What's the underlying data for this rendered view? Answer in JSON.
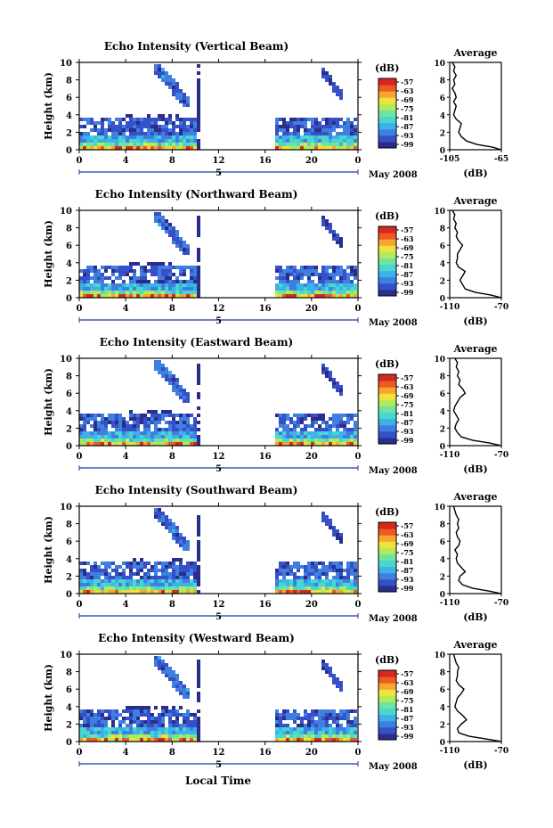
{
  "figure": {
    "bottom_xlabel": "Local Time",
    "date_label": "May 2008",
    "colorbar_unit": "(dB)",
    "colorbar_ticks": [
      "-57",
      "-63",
      "-69",
      "-75",
      "-81",
      "-87",
      "-93",
      "-99"
    ],
    "profile_title": "Average",
    "profile_xlabel": "(dB)"
  },
  "chart_data": [
    {
      "type": "heatmap",
      "title": "Echo Intensity (Vertical Beam)",
      "ylabel": "Height (km)",
      "xlim": [
        0,
        24
      ],
      "ylim": [
        0,
        10
      ],
      "xticks": [
        "0",
        "4",
        "8",
        "12",
        "16",
        "20",
        "0"
      ],
      "yticks": [
        "0",
        "2",
        "4",
        "6",
        "8",
        "10"
      ],
      "date_tick": "5",
      "data_gap_hours": [
        10.6,
        16.8
      ],
      "profile": {
        "xlim": [
          -105,
          -65
        ],
        "xticks": [
          "-105",
          "-65"
        ],
        "heights": [
          0.0,
          0.3,
          0.6,
          1.0,
          1.5,
          2.0,
          2.5,
          3.0,
          3.5,
          4.0,
          4.5,
          5.0,
          5.5,
          6.0,
          6.5,
          7.0,
          7.5,
          8.0,
          8.5,
          9.0,
          9.5,
          10.0
        ],
        "values": [
          -65,
          -72,
          -84,
          -92,
          -96,
          -98,
          -97,
          -96,
          -100,
          -102,
          -101,
          -100,
          -102,
          -100,
          -101,
          -103,
          -101,
          -102,
          -100,
          -102,
          -101,
          -103
        ]
      }
    },
    {
      "type": "heatmap",
      "title": "Echo Intensity (Northward Beam)",
      "ylabel": "Height (km)",
      "xlim": [
        0,
        24
      ],
      "ylim": [
        0,
        10
      ],
      "xticks": [
        "0",
        "4",
        "8",
        "12",
        "16",
        "20",
        "0"
      ],
      "yticks": [
        "0",
        "2",
        "4",
        "6",
        "8",
        "10"
      ],
      "date_tick": "5",
      "data_gap_hours": [
        10.6,
        16.8
      ],
      "profile": {
        "xlim": [
          -110,
          -70
        ],
        "xticks": [
          "-110",
          "-70"
        ],
        "heights": [
          0.0,
          0.3,
          0.6,
          1.0,
          1.5,
          2.0,
          2.5,
          3.0,
          3.5,
          4.0,
          4.5,
          5.0,
          5.5,
          6.0,
          6.5,
          7.0,
          7.5,
          8.0,
          8.5,
          9.0,
          9.5,
          10.0
        ],
        "values": [
          -70,
          -78,
          -90,
          -98,
          -100,
          -102,
          -100,
          -98,
          -103,
          -105,
          -104,
          -104,
          -102,
          -100,
          -103,
          -105,
          -104,
          -106,
          -105,
          -107,
          -106,
          -108
        ]
      }
    },
    {
      "type": "heatmap",
      "title": "Echo Intensity (Eastward Beam)",
      "ylabel": "Height (km)",
      "xlim": [
        0,
        24
      ],
      "ylim": [
        0,
        10
      ],
      "xticks": [
        "0",
        "4",
        "8",
        "12",
        "16",
        "20",
        "0"
      ],
      "yticks": [
        "0",
        "2",
        "4",
        "6",
        "8",
        "10"
      ],
      "date_tick": "5",
      "data_gap_hours": [
        10.6,
        16.8
      ],
      "profile": {
        "xlim": [
          -110,
          -70
        ],
        "xticks": [
          "-110",
          "-70"
        ],
        "heights": [
          0.0,
          0.3,
          0.6,
          1.0,
          1.5,
          2.0,
          2.5,
          3.0,
          3.5,
          4.0,
          4.5,
          5.0,
          5.5,
          6.0,
          6.5,
          7.0,
          7.5,
          8.0,
          8.5,
          9.0,
          9.5,
          10.0
        ],
        "values": [
          -70,
          -79,
          -92,
          -101,
          -104,
          -106,
          -105,
          -103,
          -105,
          -107,
          -106,
          -104,
          -102,
          -98,
          -100,
          -103,
          -102,
          -104,
          -103,
          -105,
          -104,
          -106
        ]
      }
    },
    {
      "type": "heatmap",
      "title": "Echo Intensity (Southward Beam)",
      "ylabel": "Height (km)",
      "xlim": [
        0,
        24
      ],
      "ylim": [
        0,
        10
      ],
      "xticks": [
        "0",
        "4",
        "8",
        "12",
        "16",
        "20",
        "0"
      ],
      "yticks": [
        "0",
        "2",
        "4",
        "6",
        "8",
        "10"
      ],
      "date_tick": "5",
      "data_gap_hours": [
        10.6,
        16.8
      ],
      "profile": {
        "xlim": [
          -110,
          -70
        ],
        "xticks": [
          "-110",
          "-70"
        ],
        "heights": [
          0.0,
          0.3,
          0.6,
          1.0,
          1.5,
          2.0,
          2.5,
          3.0,
          3.5,
          4.0,
          4.5,
          5.0,
          5.5,
          6.0,
          6.5,
          7.0,
          7.5,
          8.0,
          8.5,
          9.0,
          9.5,
          10.0
        ],
        "values": [
          -70,
          -80,
          -92,
          -100,
          -103,
          -102,
          -98,
          -101,
          -104,
          -105,
          -104,
          -106,
          -103,
          -102,
          -104,
          -105,
          -103,
          -104,
          -103,
          -105,
          -106,
          -107
        ]
      }
    },
    {
      "type": "heatmap",
      "title": "Echo Intensity (Westward Beam)",
      "ylabel": "Height (km)",
      "xlim": [
        0,
        24
      ],
      "ylim": [
        0,
        10
      ],
      "xticks": [
        "0",
        "4",
        "8",
        "12",
        "16",
        "20",
        "0"
      ],
      "yticks": [
        "0",
        "2",
        "4",
        "6",
        "8",
        "10"
      ],
      "date_tick": "5",
      "data_gap_hours": [
        10.6,
        16.8
      ],
      "profile": {
        "xlim": [
          -110,
          -70
        ],
        "xticks": [
          "-110",
          "-70"
        ],
        "heights": [
          0.0,
          0.3,
          0.6,
          1.0,
          1.5,
          2.0,
          2.5,
          3.0,
          3.5,
          4.0,
          4.5,
          5.0,
          5.5,
          6.0,
          6.5,
          7.0,
          7.5,
          8.0,
          8.5,
          9.0,
          9.5,
          10.0
        ],
        "values": [
          -70,
          -82,
          -95,
          -103,
          -104,
          -101,
          -97,
          -100,
          -104,
          -106,
          -105,
          -104,
          -101,
          -99,
          -103,
          -105,
          -104,
          -104,
          -103,
          -105,
          -106,
          -107
        ]
      }
    }
  ]
}
